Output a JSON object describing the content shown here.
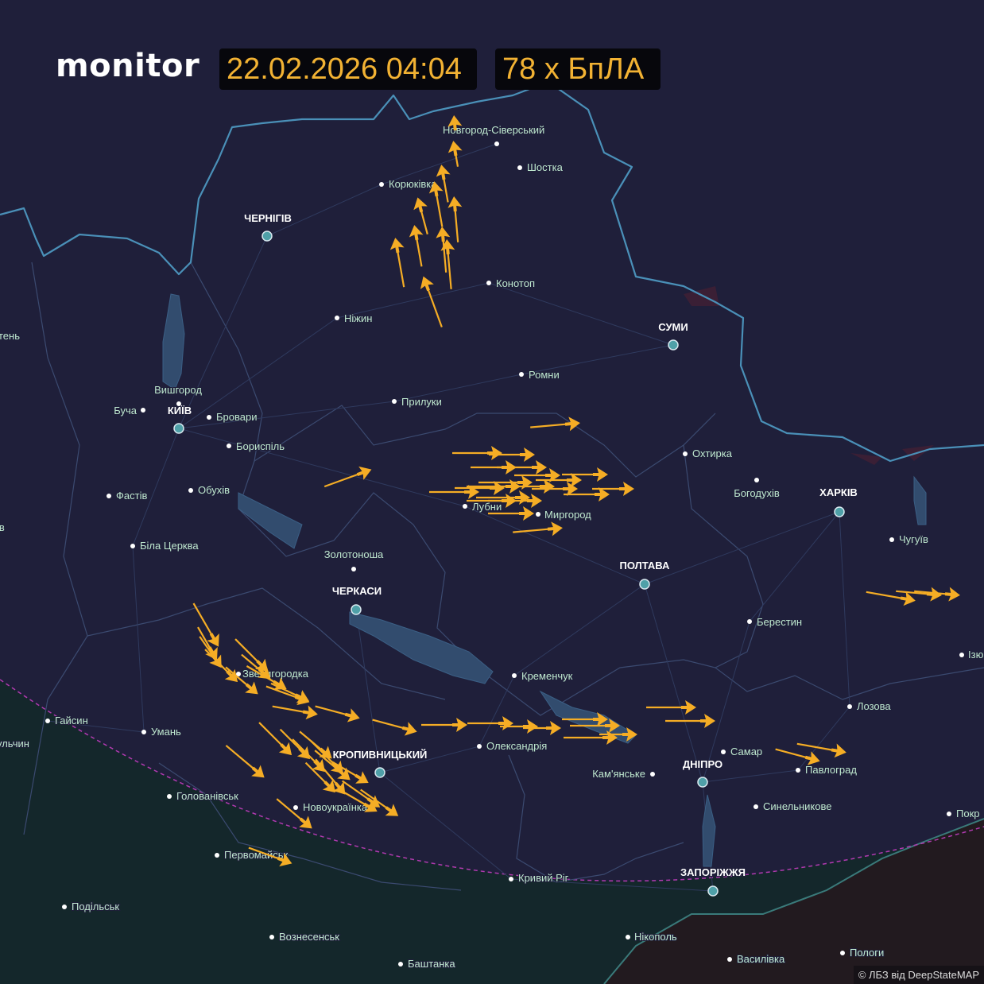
{
  "header": {
    "logo": "monitor",
    "datetime": "22.02.2026 04:04",
    "count": "78 x БпЛА"
  },
  "colors": {
    "background": "#1f1f3a",
    "accent": "#f5ad25",
    "border": "#4a90b8",
    "city_label": "#bfe8cf",
    "major_dot": "#4fa0a8"
  },
  "major_cities": [
    "ЧЕРНІГІВ",
    "СУМИ",
    "КИЇВ",
    "ХАРКІВ",
    "ПОЛТАВА",
    "ЧЕРКАСИ",
    "КРОПИВНИЦЬКИЙ",
    "ДНІПРО",
    "ЗАПОРІЖЖЯ"
  ],
  "cities": [
    "Новгород-Сіверський",
    "Шостка",
    "Корюківка",
    "Конотоп",
    "Ніжин",
    "Ромни",
    "Прилуки",
    "Вишгород",
    "Буча",
    "Бровари",
    "Бориспіль",
    "Фастів",
    "Обухів",
    "Біла Церква",
    "Золотоноша",
    "Лубни",
    "Миргород",
    "Охтирка",
    "Богодухів",
    "Чугуїв",
    "Берестин",
    "Кременчук",
    "Лозова",
    "Самар",
    "Павлоград",
    "Синельникове",
    "Кам'янське",
    "Олександрія",
    "Звенигородка",
    "Умань",
    "Гайсин",
    "Голованівськ",
    "Новоукраїнка",
    "Первомайськ",
    "Кривий Ріг",
    "Нікополь",
    "Подільськ",
    "Вознесенськ",
    "Баштанка",
    "Василівка",
    "Пологи",
    "Покр",
    "Ізю",
    "тень",
    "ів",
    "ульчин"
  ],
  "drone_icon": "shahed-drone-icon",
  "credit": "© ЛБЗ від DeepStateMAP"
}
